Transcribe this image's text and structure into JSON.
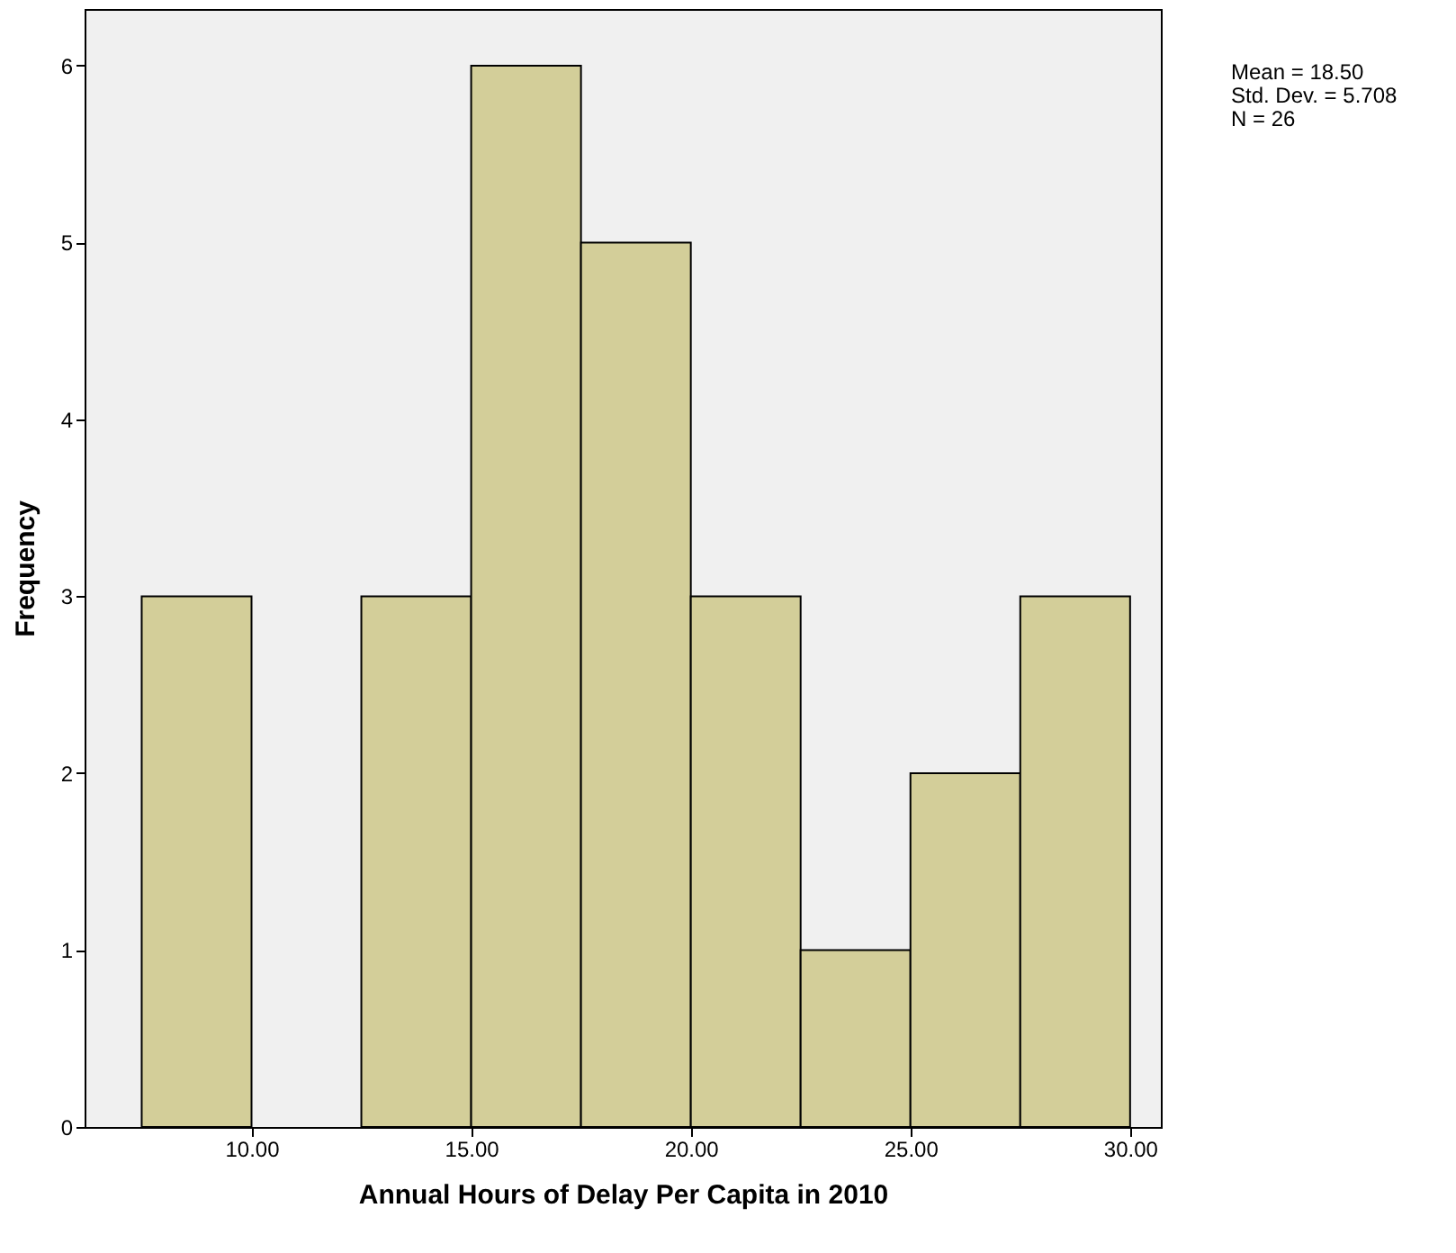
{
  "chart_data": {
    "type": "histogram",
    "xlabel": "Annual Hours of Delay Per Capita in 2010",
    "ylabel": "Frequency",
    "bins": [
      7.5,
      10,
      12.5,
      15,
      17.5,
      20,
      22.5,
      25,
      27.5,
      30
    ],
    "values": [
      3,
      0,
      3,
      6,
      5,
      3,
      1,
      2,
      3
    ],
    "color": "#d3ce99",
    "xlim": [
      6.2,
      30.7
    ],
    "xticks": [
      {
        "value": 10,
        "label": "10.00"
      },
      {
        "value": 15,
        "label": "15.00"
      },
      {
        "value": 20,
        "label": "20.00"
      },
      {
        "value": 25,
        "label": "25.00"
      },
      {
        "value": 30,
        "label": "30.00"
      }
    ],
    "ylim": [
      0,
      6.32
    ],
    "yticks": [
      0,
      1,
      2,
      3,
      4,
      5,
      6
    ],
    "grid": false,
    "annotations": [
      "Mean = 18.50",
      "Std. Dev. = 5.708",
      "N = 26"
    ]
  }
}
